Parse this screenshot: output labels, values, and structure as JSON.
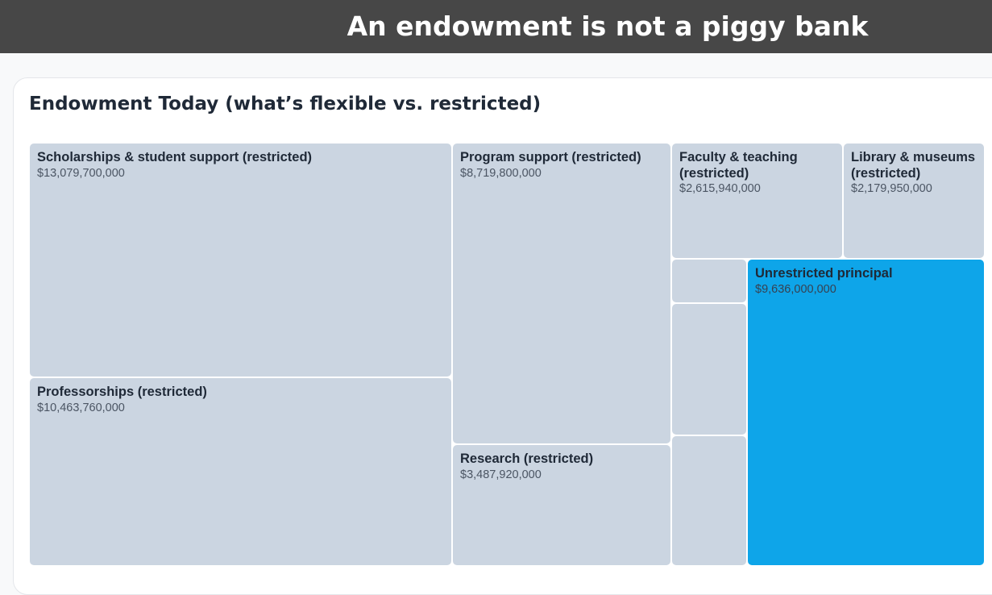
{
  "header": {
    "title": "An endowment is not a piggy bank"
  },
  "chart_data": {
    "type": "treemap",
    "title": "Endowment Today (what’s flexible vs. restricted)",
    "colors": {
      "restricted": "#cbd5e1",
      "unrestricted": "#0ea5e9"
    },
    "items": [
      {
        "name": "Scholarships & student support (restricted)",
        "label": "$13,079,700,000",
        "value": 13079700000,
        "highlight": false
      },
      {
        "name": "Professorships (restricted)",
        "label": "$10,463,760,000",
        "value": 10463760000,
        "highlight": false
      },
      {
        "name": "Program support (restricted)",
        "label": "$8,719,800,000",
        "value": 8719800000,
        "highlight": false
      },
      {
        "name": "Research (restricted)",
        "label": "$3,487,920,000",
        "value": 3487920000,
        "highlight": false
      },
      {
        "name": "Faculty & teaching (restricted)",
        "label": "$2,615,940,000",
        "value": 2615940000,
        "highlight": false
      },
      {
        "name": "Library & museums (restricted)",
        "label": "$2,179,950,000",
        "value": 2179950000,
        "highlight": false
      },
      {
        "name": "",
        "label": "",
        "value": 0,
        "highlight": false
      },
      {
        "name": "",
        "label": "",
        "value": 0,
        "highlight": false
      },
      {
        "name": "",
        "label": "",
        "value": 0,
        "highlight": false
      },
      {
        "name": "Unrestricted principal",
        "label": "$9,636,000,000",
        "value": 9636000000,
        "highlight": true
      }
    ]
  }
}
